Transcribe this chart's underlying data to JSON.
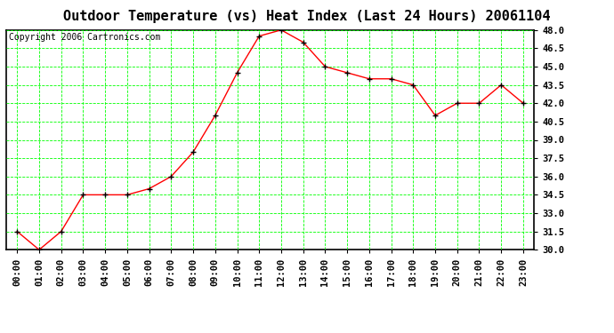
{
  "title": "Outdoor Temperature (vs) Heat Index (Last 24 Hours) 20061104",
  "copyright": "Copyright 2006 Cartronics.com",
  "x_labels": [
    "00:00",
    "01:00",
    "02:00",
    "03:00",
    "04:00",
    "05:00",
    "06:00",
    "07:00",
    "08:00",
    "09:00",
    "10:00",
    "11:00",
    "12:00",
    "13:00",
    "14:00",
    "15:00",
    "16:00",
    "17:00",
    "18:00",
    "19:00",
    "20:00",
    "21:00",
    "22:00",
    "23:00"
  ],
  "y_values": [
    31.5,
    30.0,
    31.5,
    34.5,
    34.5,
    34.5,
    35.0,
    36.0,
    38.0,
    41.0,
    44.5,
    47.5,
    48.0,
    47.0,
    45.0,
    44.5,
    44.0,
    44.0,
    43.5,
    41.0,
    42.0,
    42.0,
    43.5,
    42.0
  ],
  "y_min": 30.0,
  "y_max": 48.0,
  "y_tick_step": 1.5,
  "line_color": "#FF0000",
  "marker_color": "#000000",
  "bg_color": "#FFFFFF",
  "plot_bg_color": "#FFFFFF",
  "grid_color": "#00FF00",
  "title_color": "#000000",
  "title_fontsize": 11,
  "copyright_fontsize": 7,
  "tick_fontsize": 7.5,
  "axis_label_color": "#000000",
  "border_color": "#000000"
}
